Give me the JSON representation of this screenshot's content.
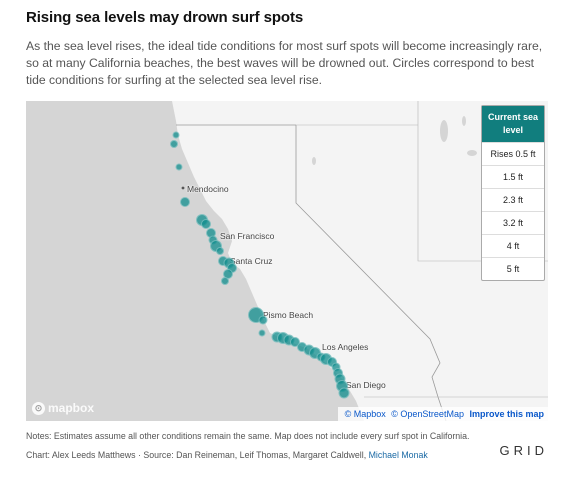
{
  "title": "Rising sea levels may drown surf spots",
  "subtitle": "As the sea level rises, the ideal tide conditions for most surf spots will become increasingly rare, so at many California beaches, the best waves will be drowned out. Circles correspond to best tide conditions for surfing at the selected sea level rise.",
  "map": {
    "cities": [
      "Mendocino",
      "San Francisco",
      "Santa Cruz",
      "Pismo Beach",
      "Los Angeles",
      "San Diego"
    ],
    "spot_color": "#0f8c8c",
    "land_color": "#f4f4f4",
    "water_color": "#d5d5d5",
    "logo": "mapbox",
    "attribution": {
      "mapbox": "© Mapbox",
      "osm": "© OpenStreetMap",
      "improve": "Improve this map"
    }
  },
  "selector": {
    "header": "Current sea level",
    "options": [
      "Rises 0.5 ft",
      "1.5 ft",
      "2.3 ft",
      "3.2 ft",
      "4 ft",
      "5 ft"
    ],
    "accent": "#117e7e"
  },
  "notes": "Notes: Estimates assume all other conditions remain the same. Map does not include every surf spot in California.",
  "credit": {
    "text": "Chart: Alex Leeds Matthews · Source: Dan Reineman, Leif Thomas, Margaret Caldwell,",
    "link": "Michael Monak"
  },
  "brand": "GRID"
}
